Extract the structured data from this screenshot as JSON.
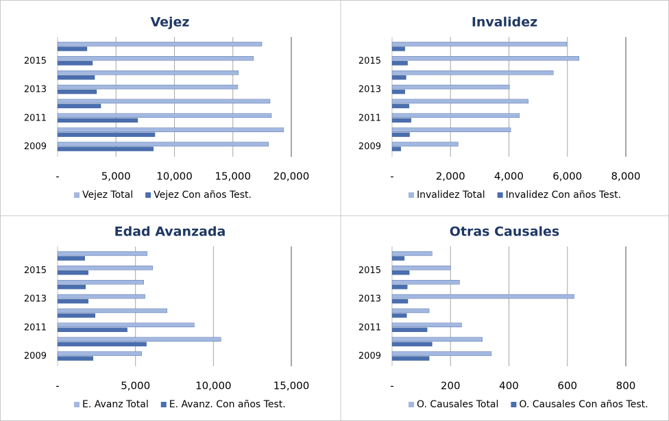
{
  "chart_data": [
    {
      "type": "bar",
      "orientation": "horizontal",
      "title": "Vejez",
      "categories": [
        "2009",
        null,
        "2011",
        null,
        "2013",
        null,
        "2015",
        null
      ],
      "series": [
        {
          "name": "Vejez Total",
          "color": "#a3b8e0",
          "values": [
            18060,
            19350,
            18300,
            18180,
            15420,
            15480,
            16770,
            17480
          ]
        },
        {
          "name": "Vejez Con años Test.",
          "color": "#4a6eae",
          "values": [
            8200,
            8330,
            6860,
            3700,
            3340,
            3170,
            2990,
            2520
          ]
        }
      ],
      "xlim": [
        0,
        20000
      ],
      "xticks": [
        {
          "value": 0,
          "label": "-"
        },
        {
          "value": 5000,
          "label": "5,000"
        },
        {
          "value": 10000,
          "label": "10,000"
        },
        {
          "value": 15000,
          "label": "15,000"
        },
        {
          "value": 20000,
          "label": "20,000"
        }
      ],
      "grid": true,
      "legend": "bottom"
    },
    {
      "type": "bar",
      "orientation": "horizontal",
      "title": "Invalidez",
      "categories": [
        "2009",
        null,
        "2011",
        null,
        "2013",
        null,
        "2015",
        null
      ],
      "series": [
        {
          "name": "Invalidez Total",
          "color": "#a3b8e0",
          "values": [
            2260,
            4060,
            4360,
            4660,
            4020,
            5520,
            6400,
            5980
          ]
        },
        {
          "name": "Invalidez Con años Test.",
          "color": "#4a6eae",
          "values": [
            300,
            600,
            650,
            580,
            440,
            480,
            530,
            440
          ]
        }
      ],
      "xlim": [
        0,
        8000
      ],
      "xticks": [
        {
          "value": 0,
          "label": "-"
        },
        {
          "value": 2000,
          "label": "2,000"
        },
        {
          "value": 4000,
          "label": "4,000"
        },
        {
          "value": 6000,
          "label": "6,000"
        },
        {
          "value": 8000,
          "label": "8,000"
        }
      ],
      "grid": true,
      "legend": "bottom"
    },
    {
      "type": "bar",
      "orientation": "horizontal",
      "title": "Edad Avanzada",
      "categories": [
        "2009",
        null,
        "2011",
        null,
        "2013",
        null,
        "2015",
        null
      ],
      "series": [
        {
          "name": "E. Avanz Total",
          "color": "#a3b8e0",
          "values": [
            5400,
            10480,
            8770,
            7020,
            5610,
            5530,
            6100,
            5750
          ]
        },
        {
          "name": "E. Avanz. Con años Test.",
          "color": "#4a6eae",
          "values": [
            2280,
            5700,
            4470,
            2410,
            1970,
            1800,
            1970,
            1750
          ]
        }
      ],
      "xlim": [
        0,
        15000
      ],
      "xticks": [
        {
          "value": 0,
          "label": "-"
        },
        {
          "value": 5000,
          "label": "5,000"
        },
        {
          "value": 10000,
          "label": "10,000"
        },
        {
          "value": 15000,
          "label": "15,000"
        }
      ],
      "grid": true,
      "legend": "bottom"
    },
    {
      "type": "bar",
      "orientation": "horizontal",
      "title": "Otras Causales",
      "categories": [
        "2009",
        null,
        "2011",
        null,
        "2013",
        null,
        "2015",
        null
      ],
      "series": [
        {
          "name": "O. Causales Total",
          "color": "#a3b8e0",
          "values": [
            340,
            309,
            238,
            127,
            623,
            231,
            200,
            137
          ]
        },
        {
          "name": "O. Causales Con años Test.",
          "color": "#4a6eae",
          "values": [
            127,
            137,
            120,
            50,
            54,
            52,
            59,
            42
          ]
        }
      ],
      "xlim": [
        0,
        800
      ],
      "xticks": [
        {
          "value": 0,
          "label": "-"
        },
        200,
        400,
        600,
        800
      ],
      "grid": true,
      "legend": "bottom"
    }
  ]
}
